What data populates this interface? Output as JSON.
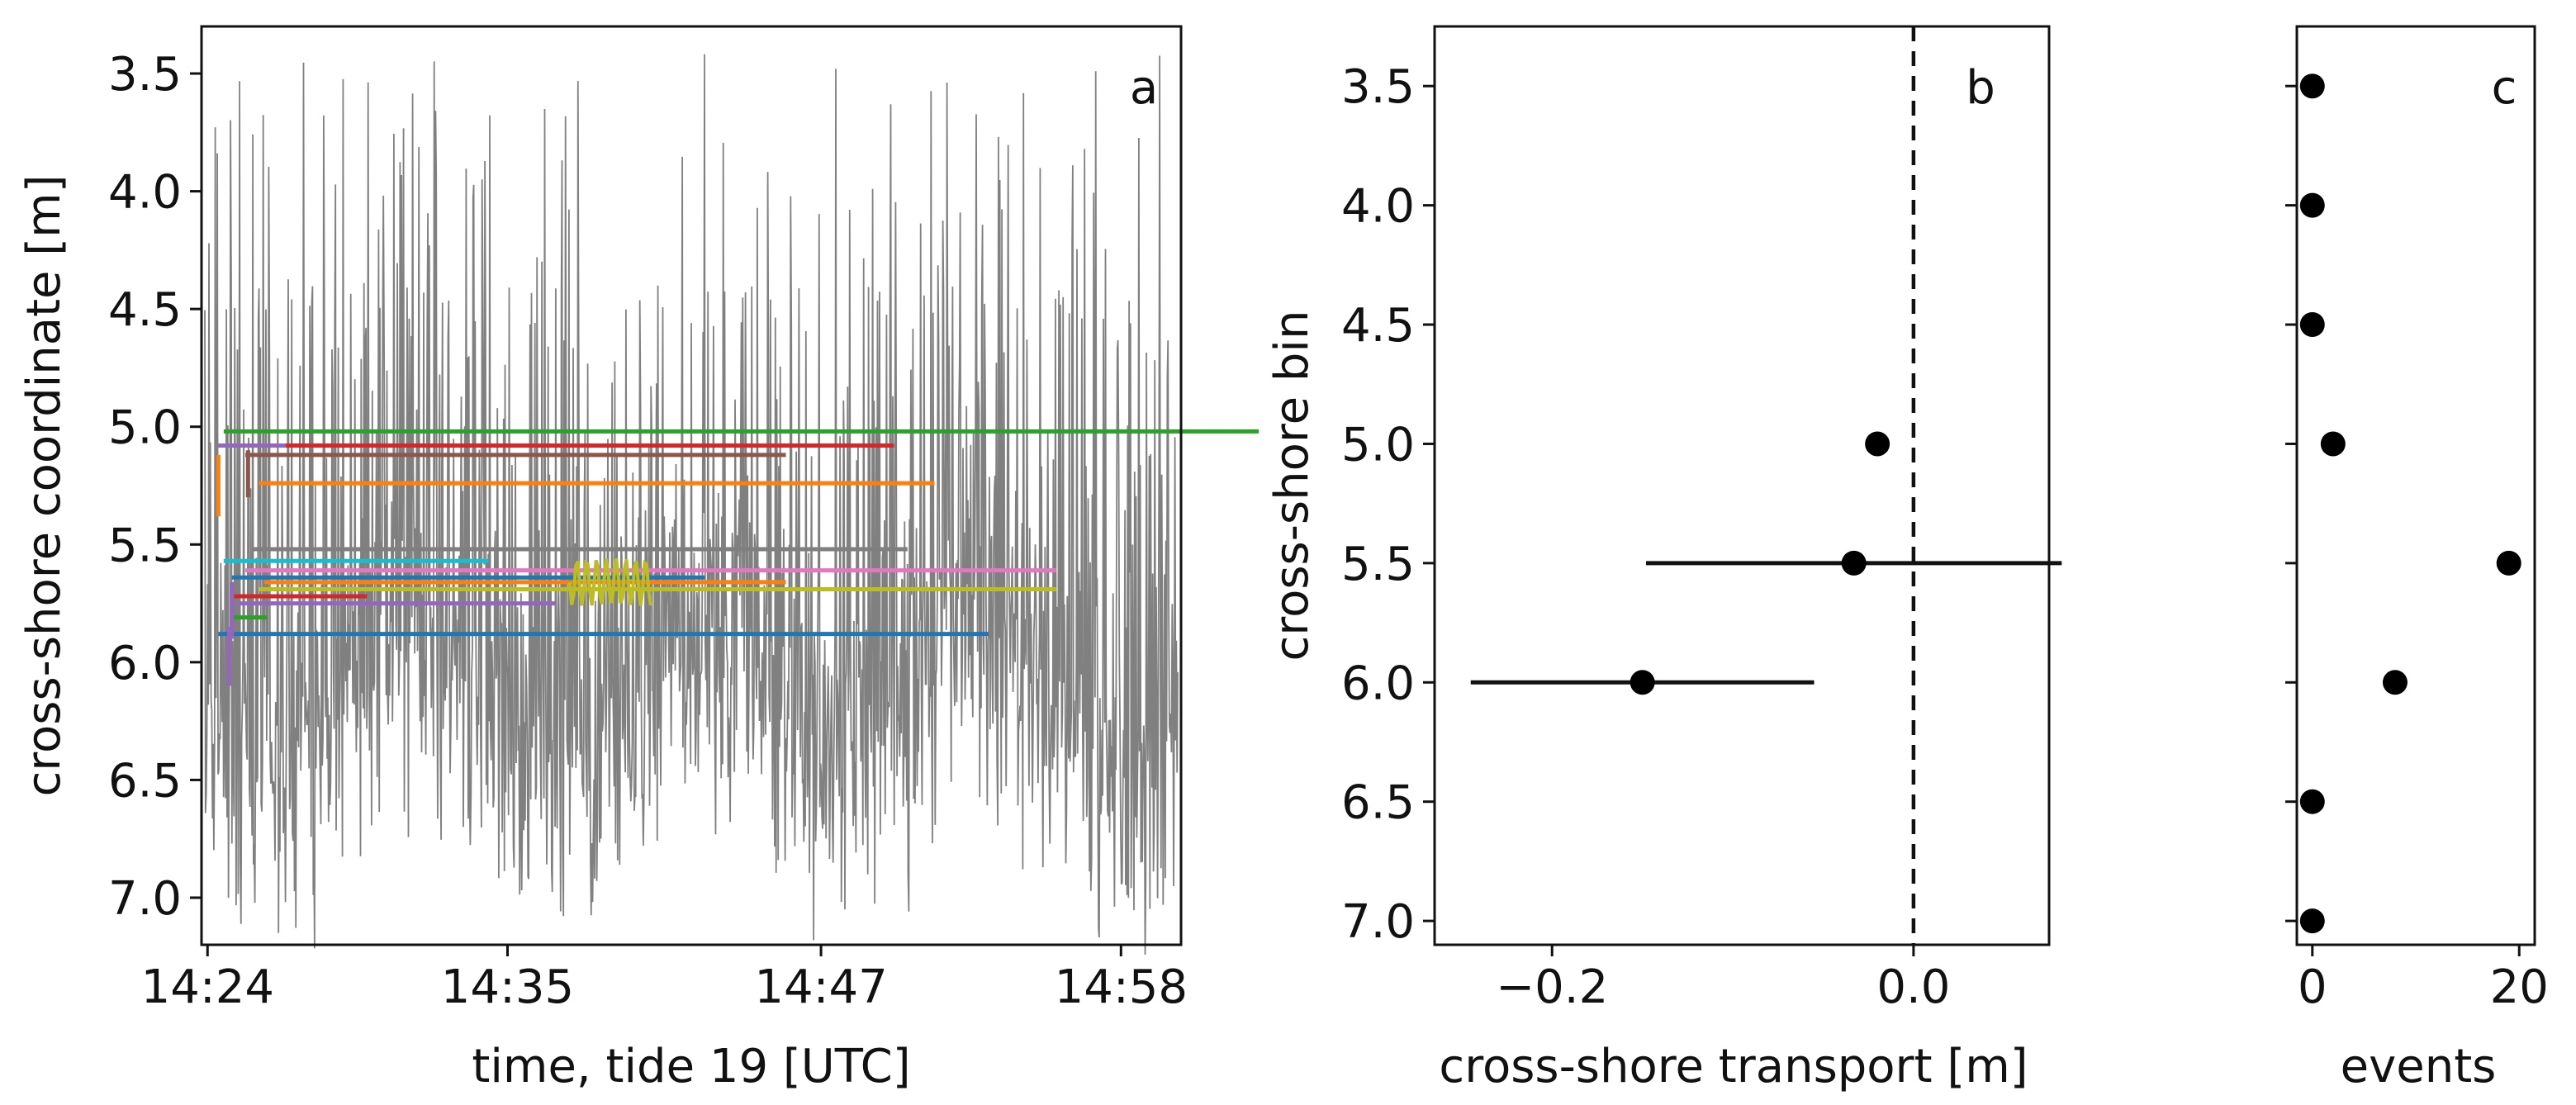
{
  "chart_data": [
    {
      "panel": "a",
      "type": "line",
      "xlabel": "time, tide 19 [UTC]",
      "ylabel": "cross-shore coordinate [m]",
      "x_tick_labels": [
        "14:24",
        "14:35",
        "14:47",
        "14:58"
      ],
      "y_ticks": [
        "3.5",
        "4.0",
        "4.5",
        "5.0",
        "5.5",
        "6.0",
        "6.5",
        "7.0"
      ],
      "ylim": [
        7.2,
        3.3
      ],
      "y_inverted": true,
      "background_series": {
        "color": "#808080",
        "description_values_approx": "shoreline / swash position oscillating between about 7.2 and 3.4 m"
      },
      "tracks": [
        {
          "color": "#2ca02c",
          "y": 5.02,
          "x_start_min": 0.7,
          "x_end_min": 39
        },
        {
          "color": "#d62728",
          "y": 5.08,
          "x_start_min": 0.7,
          "x_end_min": 25.5
        },
        {
          "color": "#8c564b",
          "y": 5.12,
          "x_start_min": 1.5,
          "x_end_min": 21.5
        },
        {
          "color": "#9467bd",
          "y": 5.08,
          "x_start_min": 0.5,
          "x_end_min": 3.0
        },
        {
          "color": "#ff7f0e",
          "y": 5.24,
          "x_start_min": 2.0,
          "x_end_min": 27.0
        },
        {
          "color": "#7f7f7f",
          "y": 5.52,
          "x_start_min": 1.8,
          "x_end_min": 26.0
        },
        {
          "color": "#17becf",
          "y": 5.57,
          "x_start_min": 0.7,
          "x_end_min": 10.5
        },
        {
          "color": "#e377c2",
          "y": 5.61,
          "x_start_min": 1.5,
          "x_end_min": 31.5
        },
        {
          "color": "#1f77b4",
          "y": 5.64,
          "x_start_min": 1.0,
          "x_end_min": 18.5
        },
        {
          "color": "#bcbd22",
          "y": 5.69,
          "x_start_min": 2.0,
          "x_end_min": 31.5
        },
        {
          "color": "#ff7f0e",
          "y": 5.66,
          "x_start_min": 2.2,
          "x_end_min": 21.5
        },
        {
          "color": "#d62728",
          "y": 5.72,
          "x_start_min": 1.0,
          "x_end_min": 6.0
        },
        {
          "color": "#9467bd",
          "y": 5.75,
          "x_start_min": 1.2,
          "x_end_min": 13.0
        },
        {
          "color": "#2ca02c",
          "y": 5.81,
          "x_start_min": 1.0,
          "x_end_min": 2.3
        },
        {
          "color": "#1f77b4",
          "y": 5.88,
          "x_start_min": 0.5,
          "x_end_min": 29.0
        }
      ]
    },
    {
      "panel": "b",
      "type": "scatter",
      "xlabel": "cross-shore transport [m]",
      "ylabel": "cross-shore bin",
      "x_ticks": [
        "−0.2",
        "0.0"
      ],
      "y_ticks": [
        "3.5",
        "4.0",
        "4.5",
        "5.0",
        "5.5",
        "6.0",
        "6.5",
        "7.0"
      ],
      "xlim": [
        -0.265,
        0.075
      ],
      "ylim": [
        7.1,
        3.25
      ],
      "zero_line": "dashed",
      "points": [
        {
          "bin": 5.0,
          "value": -0.02,
          "err_low": -0.025,
          "err_high": -0.015
        },
        {
          "bin": 5.5,
          "value": -0.033,
          "err_low": -0.148,
          "err_high": 0.082
        },
        {
          "bin": 6.0,
          "value": -0.15,
          "err_low": -0.245,
          "err_high": -0.055
        }
      ]
    },
    {
      "panel": "c",
      "type": "scatter",
      "xlabel": "events",
      "x_ticks": [
        "0",
        "20"
      ],
      "xlim": [
        -1.5,
        21.5
      ],
      "ylim": [
        7.1,
        3.25
      ],
      "points": [
        {
          "bin": 3.5,
          "value": 0
        },
        {
          "bin": 4.0,
          "value": 0
        },
        {
          "bin": 4.5,
          "value": 0
        },
        {
          "bin": 5.0,
          "value": 2
        },
        {
          "bin": 5.5,
          "value": 19
        },
        {
          "bin": 6.0,
          "value": 8
        },
        {
          "bin": 6.5,
          "value": 0
        },
        {
          "bin": 7.0,
          "value": 0
        }
      ]
    }
  ],
  "panel_letters": {
    "a": "a",
    "b": "b",
    "c": "c"
  }
}
